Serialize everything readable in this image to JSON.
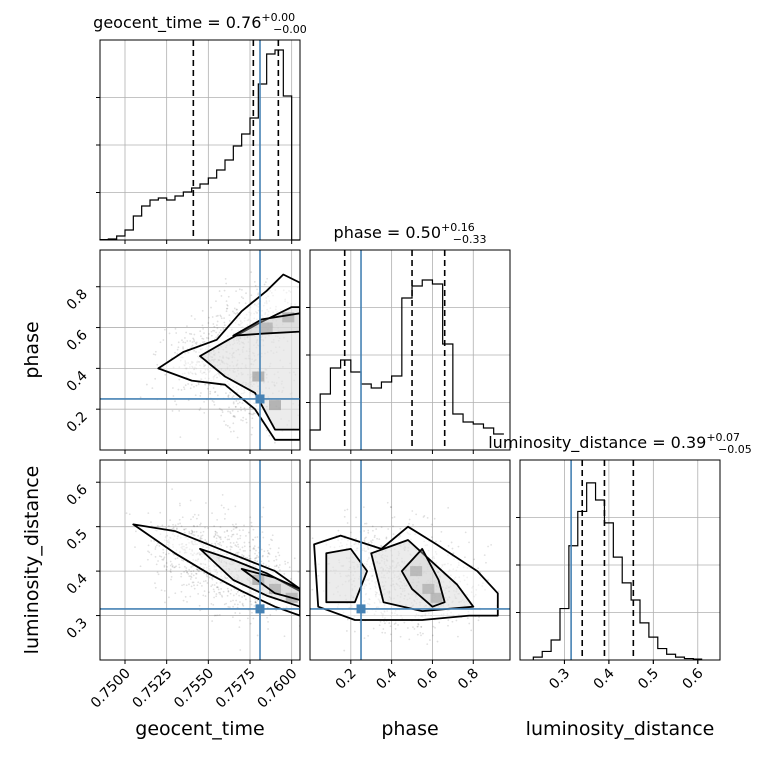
{
  "chart_data": {
    "type": "corner",
    "parameters": [
      "geocent_time",
      "phase",
      "luminosity_distance"
    ],
    "injection": {
      "geocent_time": 0.7581,
      "phase": 0.25,
      "luminosity_distance": 0.315
    },
    "truth_color": "#4682b4",
    "contour_color": "#000000",
    "grid": true,
    "diagonal": [
      {
        "param": "geocent_time",
        "title": "geocent_time = 0.76",
        "title_sup": "+0.00",
        "title_sub": "−0.00",
        "xlim": [
          0.7485,
          0.7605
        ],
        "bin_edges": [
          0.7485,
          0.749,
          0.7495,
          0.75,
          0.7505,
          0.751,
          0.7515,
          0.752,
          0.7525,
          0.753,
          0.7535,
          0.754,
          0.7545,
          0.755,
          0.7555,
          0.756,
          0.7565,
          0.757,
          0.7575,
          0.758,
          0.7585,
          0.759,
          0.7595,
          0.76,
          0.7605
        ],
        "counts": [
          0.2,
          0.5,
          2,
          5,
          12,
          17,
          20,
          21,
          20,
          22,
          24,
          26,
          28,
          31,
          35,
          40,
          47,
          53,
          61,
          78,
          93,
          95,
          72,
          0
        ],
        "ymax": 100,
        "quantiles": [
          0.7541,
          0.7577,
          0.7592
        ]
      },
      {
        "param": "phase",
        "title": "phase = 0.50",
        "title_sup": "+0.16",
        "title_sub": "−0.33",
        "xlim": [
          0.0,
          0.98
        ],
        "bin_edges": [
          0.0,
          0.05,
          0.1,
          0.15,
          0.2,
          0.25,
          0.3,
          0.35,
          0.4,
          0.45,
          0.5,
          0.55,
          0.6,
          0.65,
          0.7,
          0.75,
          0.8,
          0.85,
          0.9,
          0.95
        ],
        "counts": [
          10,
          28,
          41,
          45,
          39,
          33,
          31,
          34,
          37,
          76,
          82,
          85,
          83,
          53,
          18,
          14,
          13,
          11,
          8
        ],
        "ymax": 100,
        "quantiles": [
          0.17,
          0.5,
          0.66
        ]
      },
      {
        "param": "luminosity_distance",
        "title": "luminosity_distance = 0.39",
        "title_sup": "+0.07",
        "title_sub": "−0.05",
        "xlim": [
          0.2,
          0.65
        ],
        "bin_edges": [
          0.23,
          0.25,
          0.27,
          0.29,
          0.31,
          0.33,
          0.35,
          0.37,
          0.39,
          0.41,
          0.43,
          0.45,
          0.47,
          0.49,
          0.51,
          0.53,
          0.55,
          0.57,
          0.59,
          0.61
        ],
        "counts": [
          1,
          3,
          7,
          18,
          40,
          52,
          62,
          56,
          48,
          36,
          27,
          21,
          13,
          8,
          4,
          2,
          1,
          0.5,
          0.3
        ],
        "ymax": 70,
        "quantiles": [
          0.34,
          0.39,
          0.455
        ]
      }
    ],
    "offdiagonal": [
      {
        "x": "geocent_time",
        "y": "phase",
        "xlim": [
          0.7485,
          0.7605
        ],
        "ylim": [
          0.0,
          0.98
        ],
        "yticks": [
          0.2,
          0.4,
          0.6,
          0.8
        ],
        "ytick_labels": [
          "0.2",
          "0.4",
          "0.6",
          "0.8"
        ],
        "dense_regions": [
          [
            0.7598,
            0.65
          ],
          [
            0.7585,
            0.6
          ],
          [
            0.759,
            0.22
          ],
          [
            0.758,
            0.36
          ]
        ],
        "contours": [
          [
            [
              0.752,
              0.4
            ],
            [
              0.7535,
              0.48
            ],
            [
              0.7555,
              0.54
            ],
            [
              0.757,
              0.68
            ],
            [
              0.7585,
              0.78
            ],
            [
              0.7595,
              0.86
            ],
            [
              0.7605,
              0.82
            ],
            [
              0.7605,
              0.05
            ],
            [
              0.759,
              0.05
            ],
            [
              0.7578,
              0.2
            ],
            [
              0.756,
              0.32
            ],
            [
              0.754,
              0.34
            ],
            [
              0.752,
              0.4
            ]
          ],
          [
            [
              0.7545,
              0.46
            ],
            [
              0.7562,
              0.54
            ],
            [
              0.758,
              0.62
            ],
            [
              0.76,
              0.7
            ],
            [
              0.7605,
              0.7
            ],
            [
              0.7605,
              0.1
            ],
            [
              0.759,
              0.1
            ],
            [
              0.7578,
              0.28
            ],
            [
              0.756,
              0.36
            ],
            [
              0.7545,
              0.46
            ]
          ],
          [
            [
              0.7565,
              0.56
            ],
            [
              0.7582,
              0.64
            ],
            [
              0.7605,
              0.67
            ],
            [
              0.7605,
              0.58
            ],
            [
              0.7582,
              0.57
            ],
            [
              0.7565,
              0.56
            ]
          ]
        ]
      },
      {
        "x": "geocent_time",
        "y": "luminosity_distance",
        "xlim": [
          0.7485,
          0.7605
        ],
        "ylim": [
          0.2,
          0.65
        ],
        "xticks": [
          0.75,
          0.7525,
          0.755,
          0.7575,
          0.76
        ],
        "xtick_labels": [
          "0.7500",
          "0.7525",
          "0.7550",
          "0.7575",
          "0.7600"
        ],
        "yticks": [
          0.3,
          0.4,
          0.5,
          0.6
        ],
        "ytick_labels": [
          "0.3",
          "0.4",
          "0.5",
          "0.6"
        ],
        "dense_regions": [
          [
            0.759,
            0.36
          ],
          [
            0.758,
            0.38
          ],
          [
            0.76,
            0.34
          ]
        ],
        "contours": [
          [
            [
              0.7505,
              0.505
            ],
            [
              0.753,
              0.49
            ],
            [
              0.755,
              0.46
            ],
            [
              0.757,
              0.43
            ],
            [
              0.759,
              0.4
            ],
            [
              0.7605,
              0.36
            ],
            [
              0.7605,
              0.3
            ],
            [
              0.759,
              0.32
            ],
            [
              0.757,
              0.355
            ],
            [
              0.755,
              0.395
            ],
            [
              0.753,
              0.44
            ],
            [
              0.7505,
              0.505
            ]
          ],
          [
            [
              0.7545,
              0.45
            ],
            [
              0.7565,
              0.425
            ],
            [
              0.7585,
              0.395
            ],
            [
              0.7605,
              0.355
            ],
            [
              0.7605,
              0.32
            ],
            [
              0.7585,
              0.345
            ],
            [
              0.7565,
              0.38
            ],
            [
              0.7545,
              0.45
            ]
          ],
          [
            [
              0.757,
              0.405
            ],
            [
              0.759,
              0.385
            ],
            [
              0.7605,
              0.36
            ],
            [
              0.7605,
              0.335
            ],
            [
              0.759,
              0.35
            ],
            [
              0.757,
              0.405
            ]
          ]
        ]
      },
      {
        "x": "phase",
        "y": "luminosity_distance",
        "xlim": [
          0.0,
          0.98
        ],
        "ylim": [
          0.2,
          0.65
        ],
        "xticks": [
          0.2,
          0.4,
          0.6,
          0.8
        ],
        "xtick_labels": [
          "0.2",
          "0.4",
          "0.6",
          "0.8"
        ],
        "dense_regions": [
          [
            0.58,
            0.36
          ],
          [
            0.62,
            0.34
          ],
          [
            0.52,
            0.4
          ]
        ],
        "contours": [
          [
            [
              0.02,
              0.46
            ],
            [
              0.15,
              0.48
            ],
            [
              0.35,
              0.45
            ],
            [
              0.48,
              0.5
            ],
            [
              0.62,
              0.46
            ],
            [
              0.82,
              0.4
            ],
            [
              0.92,
              0.35
            ],
            [
              0.92,
              0.3
            ],
            [
              0.78,
              0.3
            ],
            [
              0.55,
              0.29
            ],
            [
              0.38,
              0.29
            ],
            [
              0.22,
              0.29
            ],
            [
              0.04,
              0.32
            ],
            [
              0.02,
              0.46
            ]
          ],
          [
            [
              0.08,
              0.44
            ],
            [
              0.2,
              0.45
            ],
            [
              0.28,
              0.4
            ],
            [
              0.22,
              0.33
            ],
            [
              0.08,
              0.33
            ],
            [
              0.08,
              0.44
            ]
          ],
          [
            [
              0.3,
              0.44
            ],
            [
              0.48,
              0.47
            ],
            [
              0.6,
              0.42
            ],
            [
              0.72,
              0.37
            ],
            [
              0.8,
              0.32
            ],
            [
              0.55,
              0.31
            ],
            [
              0.36,
              0.33
            ],
            [
              0.3,
              0.44
            ]
          ],
          [
            [
              0.45,
              0.4
            ],
            [
              0.55,
              0.45
            ],
            [
              0.63,
              0.38
            ],
            [
              0.66,
              0.33
            ],
            [
              0.6,
              0.32
            ],
            [
              0.5,
              0.36
            ],
            [
              0.45,
              0.4
            ]
          ]
        ]
      }
    ]
  }
}
